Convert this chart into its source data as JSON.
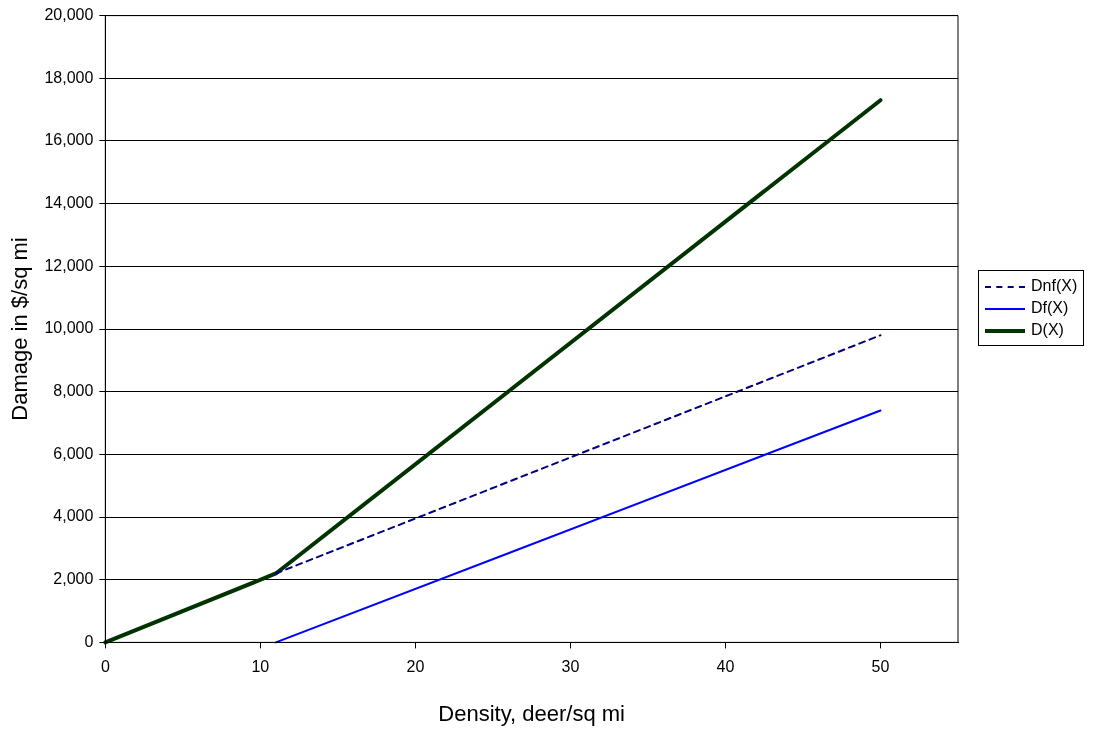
{
  "chart_data": {
    "type": "line",
    "xlabel": "Density, deer/sq mi",
    "ylabel": "Damage in $/sq mi",
    "xlim": [
      0,
      55
    ],
    "xticks": [
      0,
      10,
      20,
      30,
      40,
      50
    ],
    "ylim": [
      0,
      20000
    ],
    "yticks": [
      {
        "value": 0,
        "label": "0"
      },
      {
        "value": 2000,
        "label": "2,000"
      },
      {
        "value": 4000,
        "label": "4,000"
      },
      {
        "value": 6000,
        "label": "6,000"
      },
      {
        "value": 8000,
        "label": "8,000"
      },
      {
        "value": 10000,
        "label": "10,000"
      },
      {
        "value": 12000,
        "label": "12,000"
      },
      {
        "value": 14000,
        "label": "14,000"
      },
      {
        "value": 16000,
        "label": "16,000"
      },
      {
        "value": 18000,
        "label": "18,000"
      },
      {
        "value": 20000,
        "label": "20,000"
      }
    ],
    "grid": "y",
    "legend": "right",
    "marker": "none",
    "series": [
      {
        "name": "Dnf(X)",
        "color": "#000080",
        "line_style": "dashed",
        "x": [
          11,
          50
        ],
        "values": [
          2200,
          9800
        ]
      },
      {
        "name": "Df(X)",
        "color": "#0000ff",
        "line_style": "solid",
        "x": [
          11,
          50
        ],
        "values": [
          0,
          7400
        ]
      },
      {
        "name": "D(X)",
        "color": "#003300",
        "line_style": "solid",
        "x": [
          0,
          11,
          50
        ],
        "values": [
          0,
          2200,
          17300
        ]
      }
    ]
  }
}
